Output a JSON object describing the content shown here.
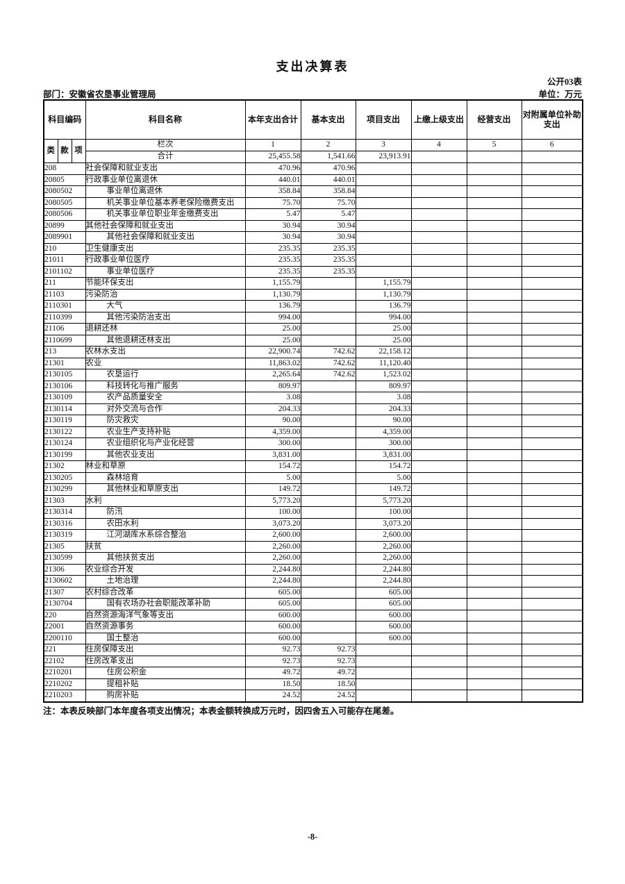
{
  "page": {
    "title": "支出决算表",
    "table_code": "公开03表",
    "department_label": "部门：安徽省农垦事业管理局",
    "unit_label": "单位：万元",
    "note": "注：本表反映部门本年度各项支出情况；本表金额转换成万元时，因四舍五入可能存在尾差。",
    "page_number": "-8-"
  },
  "table": {
    "columns": [
      "科目编码",
      "科目名称",
      "本年支出合计",
      "基本支出",
      "项目支出",
      "上缴上级支出",
      "经营支出",
      "对附属单位补助支出"
    ],
    "code_subcolumns": [
      "类",
      "款",
      "项"
    ],
    "lanci_label": "栏次",
    "column_numbers": [
      "1",
      "2",
      "3",
      "4",
      "5",
      "6"
    ],
    "total_row": {
      "label": "合计",
      "values": [
        "25,455.58",
        "1,541.66",
        "23,913.91",
        "",
        "",
        ""
      ]
    },
    "rows": [
      {
        "code": "208",
        "name": "社会保障和就业支出",
        "indent": 0,
        "values": [
          "470.96",
          "470.96",
          "",
          "",
          "",
          ""
        ]
      },
      {
        "code": "20805",
        "name": "行政事业单位离退休",
        "indent": 0,
        "values": [
          "440.01",
          "440.01",
          "",
          "",
          "",
          ""
        ]
      },
      {
        "code": "2080502",
        "name": "事业单位离退休",
        "indent": 1,
        "values": [
          "358.84",
          "358.84",
          "",
          "",
          "",
          ""
        ]
      },
      {
        "code": "2080505",
        "name": "机关事业单位基本养老保险缴费支出",
        "indent": 1,
        "values": [
          "75.70",
          "75.70",
          "",
          "",
          "",
          ""
        ]
      },
      {
        "code": "2080506",
        "name": "机关事业单位职业年金缴费支出",
        "indent": 1,
        "values": [
          "5.47",
          "5.47",
          "",
          "",
          "",
          ""
        ]
      },
      {
        "code": "20899",
        "name": "其他社会保障和就业支出",
        "indent": 0,
        "values": [
          "30.94",
          "30.94",
          "",
          "",
          "",
          ""
        ]
      },
      {
        "code": "2089901",
        "name": "其他社会保障和就业支出",
        "indent": 1,
        "values": [
          "30.94",
          "30.94",
          "",
          "",
          "",
          ""
        ]
      },
      {
        "code": "210",
        "name": "卫生健康支出",
        "indent": 0,
        "values": [
          "235.35",
          "235.35",
          "",
          "",
          "",
          ""
        ]
      },
      {
        "code": "21011",
        "name": "行政事业单位医疗",
        "indent": 0,
        "values": [
          "235.35",
          "235.35",
          "",
          "",
          "",
          ""
        ]
      },
      {
        "code": "2101102",
        "name": "事业单位医疗",
        "indent": 1,
        "values": [
          "235.35",
          "235.35",
          "",
          "",
          "",
          ""
        ]
      },
      {
        "code": "211",
        "name": "节能环保支出",
        "indent": 0,
        "values": [
          "1,155.79",
          "",
          "1,155.79",
          "",
          "",
          ""
        ]
      },
      {
        "code": "21103",
        "name": "污染防治",
        "indent": 0,
        "values": [
          "1,130.79",
          "",
          "1,130.79",
          "",
          "",
          ""
        ]
      },
      {
        "code": "2110301",
        "name": "大气",
        "indent": 1,
        "values": [
          "136.79",
          "",
          "136.79",
          "",
          "",
          ""
        ]
      },
      {
        "code": "2110399",
        "name": "其他污染防治支出",
        "indent": 1,
        "values": [
          "994.00",
          "",
          "994.00",
          "",
          "",
          ""
        ]
      },
      {
        "code": "21106",
        "name": "退耕还林",
        "indent": 0,
        "values": [
          "25.00",
          "",
          "25.00",
          "",
          "",
          ""
        ]
      },
      {
        "code": "2110699",
        "name": "其他退耕还林支出",
        "indent": 1,
        "values": [
          "25.00",
          "",
          "25.00",
          "",
          "",
          ""
        ]
      },
      {
        "code": "213",
        "name": "农林水支出",
        "indent": 0,
        "values": [
          "22,900.74",
          "742.62",
          "22,158.12",
          "",
          "",
          ""
        ]
      },
      {
        "code": "21301",
        "name": "农业",
        "indent": 0,
        "values": [
          "11,863.02",
          "742.62",
          "11,120.40",
          "",
          "",
          ""
        ]
      },
      {
        "code": "2130105",
        "name": "农垦运行",
        "indent": 1,
        "values": [
          "2,265.64",
          "742.62",
          "1,523.02",
          "",
          "",
          ""
        ]
      },
      {
        "code": "2130106",
        "name": "科技转化与推广服务",
        "indent": 1,
        "values": [
          "809.97",
          "",
          "809.97",
          "",
          "",
          ""
        ]
      },
      {
        "code": "2130109",
        "name": "农产品质量安全",
        "indent": 1,
        "values": [
          "3.08",
          "",
          "3.08",
          "",
          "",
          ""
        ]
      },
      {
        "code": "2130114",
        "name": "对外交流与合作",
        "indent": 1,
        "values": [
          "204.33",
          "",
          "204.33",
          "",
          "",
          ""
        ]
      },
      {
        "code": "2130119",
        "name": "防灾救灾",
        "indent": 1,
        "values": [
          "90.00",
          "",
          "90.00",
          "",
          "",
          ""
        ]
      },
      {
        "code": "2130122",
        "name": "农业生产支持补贴",
        "indent": 1,
        "values": [
          "4,359.00",
          "",
          "4,359.00",
          "",
          "",
          ""
        ]
      },
      {
        "code": "2130124",
        "name": "农业组织化与产业化经营",
        "indent": 1,
        "values": [
          "300.00",
          "",
          "300.00",
          "",
          "",
          ""
        ]
      },
      {
        "code": "2130199",
        "name": "其他农业支出",
        "indent": 1,
        "values": [
          "3,831.00",
          "",
          "3,831.00",
          "",
          "",
          ""
        ]
      },
      {
        "code": "21302",
        "name": "林业和草原",
        "indent": 0,
        "values": [
          "154.72",
          "",
          "154.72",
          "",
          "",
          ""
        ]
      },
      {
        "code": "2130205",
        "name": "森林培育",
        "indent": 1,
        "values": [
          "5.00",
          "",
          "5.00",
          "",
          "",
          ""
        ]
      },
      {
        "code": "2130299",
        "name": "其他林业和草原支出",
        "indent": 1,
        "values": [
          "149.72",
          "",
          "149.72",
          "",
          "",
          ""
        ]
      },
      {
        "code": "21303",
        "name": "水利",
        "indent": 0,
        "values": [
          "5,773.20",
          "",
          "5,773.20",
          "",
          "",
          ""
        ]
      },
      {
        "code": "2130314",
        "name": "防汛",
        "indent": 1,
        "values": [
          "100.00",
          "",
          "100.00",
          "",
          "",
          ""
        ]
      },
      {
        "code": "2130316",
        "name": "农田水利",
        "indent": 1,
        "values": [
          "3,073.20",
          "",
          "3,073.20",
          "",
          "",
          ""
        ]
      },
      {
        "code": "2130319",
        "name": "江河湖库水系综合整治",
        "indent": 1,
        "values": [
          "2,600.00",
          "",
          "2,600.00",
          "",
          "",
          ""
        ]
      },
      {
        "code": "21305",
        "name": "扶贫",
        "indent": 0,
        "values": [
          "2,260.00",
          "",
          "2,260.00",
          "",
          "",
          ""
        ]
      },
      {
        "code": "2130599",
        "name": "其他扶贫支出",
        "indent": 1,
        "values": [
          "2,260.00",
          "",
          "2,260.00",
          "",
          "",
          ""
        ]
      },
      {
        "code": "21306",
        "name": "农业综合开发",
        "indent": 0,
        "values": [
          "2,244.80",
          "",
          "2,244.80",
          "",
          "",
          ""
        ]
      },
      {
        "code": "2130602",
        "name": "土地治理",
        "indent": 1,
        "values": [
          "2,244.80",
          "",
          "2,244.80",
          "",
          "",
          ""
        ]
      },
      {
        "code": "21307",
        "name": "农村综合改革",
        "indent": 0,
        "values": [
          "605.00",
          "",
          "605.00",
          "",
          "",
          ""
        ]
      },
      {
        "code": "2130704",
        "name": "国有农场办社会职能改革补助",
        "indent": 1,
        "values": [
          "605.00",
          "",
          "605.00",
          "",
          "",
          ""
        ]
      },
      {
        "code": "220",
        "name": "自然资源海洋气象等支出",
        "indent": 0,
        "values": [
          "600.00",
          "",
          "600.00",
          "",
          "",
          ""
        ]
      },
      {
        "code": "22001",
        "name": "自然资源事务",
        "indent": 0,
        "values": [
          "600.00",
          "",
          "600.00",
          "",
          "",
          ""
        ]
      },
      {
        "code": "2200110",
        "name": "国土整治",
        "indent": 1,
        "values": [
          "600.00",
          "",
          "600.00",
          "",
          "",
          ""
        ]
      },
      {
        "code": "221",
        "name": "住房保障支出",
        "indent": 0,
        "values": [
          "92.73",
          "92.73",
          "",
          "",
          "",
          ""
        ]
      },
      {
        "code": "22102",
        "name": "住房改革支出",
        "indent": 0,
        "values": [
          "92.73",
          "92.73",
          "",
          "",
          "",
          ""
        ]
      },
      {
        "code": "2210201",
        "name": "住房公积金",
        "indent": 1,
        "values": [
          "49.72",
          "49.72",
          "",
          "",
          "",
          ""
        ]
      },
      {
        "code": "2210202",
        "name": "提租补贴",
        "indent": 1,
        "values": [
          "18.50",
          "18.50",
          "",
          "",
          "",
          ""
        ]
      },
      {
        "code": "2210203",
        "name": "购房补贴",
        "indent": 1,
        "values": [
          "24.52",
          "24.52",
          "",
          "",
          "",
          ""
        ]
      }
    ]
  }
}
